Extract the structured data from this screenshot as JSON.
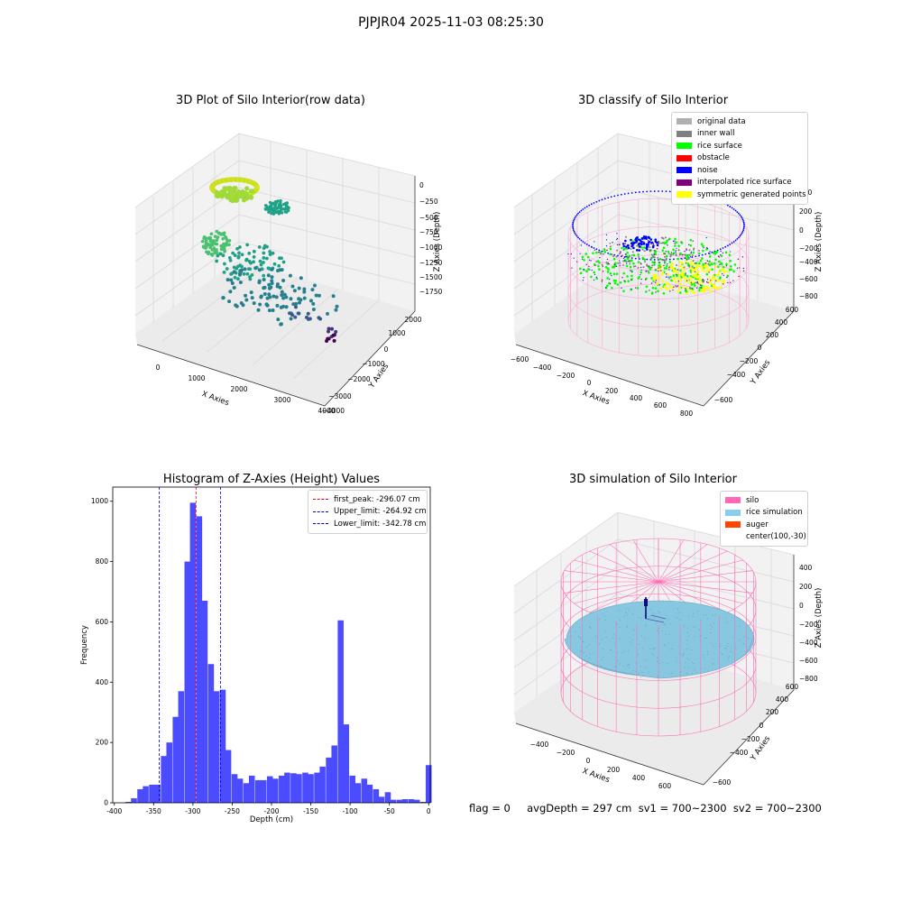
{
  "suptitle": "PJPJR04 2025-11-03 08:25:30",
  "footer": "flag = 0     avgDepth = 297 cm  sv1 = 700~2300  sv2 = 700~2300",
  "chart_data": [
    {
      "type": "scatter",
      "title": "3D Plot of Silo Interior(row data)",
      "xlabel": "X Axies",
      "ylabel": "Y Axies",
      "zlabel": "Z Axies (Depth)",
      "x_ticks": [
        "0",
        "1000",
        "2000",
        "3000",
        "4000"
      ],
      "y_ticks": [
        "−4000",
        "−3000",
        "−2000",
        "−1000",
        "0",
        "1000",
        "2000"
      ],
      "z_ticks": [
        "0",
        "−250",
        "−500",
        "−750",
        "−1000",
        "−1250",
        "−1500",
        "−1750"
      ]
    },
    {
      "type": "scatter",
      "title": "3D classify of Silo Interior",
      "xlabel": "X Axies",
      "ylabel": "Y Axies",
      "zlabel": "Z Axies (Depth)",
      "x_ticks": [
        "−600",
        "−400",
        "−200",
        "0",
        "200",
        "400",
        "600",
        "800"
      ],
      "y_ticks": [
        "−600",
        "−400",
        "−200",
        "0",
        "200",
        "400",
        "600"
      ],
      "z_ticks": [
        "400",
        "200",
        "0",
        "−200",
        "−400",
        "−600",
        "−800"
      ],
      "legend": [
        {
          "label": "original data",
          "color": "#b0b0b0"
        },
        {
          "label": "inner wall",
          "color": "#808080"
        },
        {
          "label": "rice surface",
          "color": "#00ff00"
        },
        {
          "label": "obstacle",
          "color": "#ff0000"
        },
        {
          "label": "noise",
          "color": "#0000ff"
        },
        {
          "label": "interpolated rice surface",
          "color": "#800080"
        },
        {
          "label": "symmetric generated points",
          "color": "#ffff00"
        }
      ]
    },
    {
      "type": "bar",
      "title": "Histogram of Z-Axies (Height) Values",
      "xlabel": "Depth (cm)",
      "ylabel": "Frequency",
      "xlim": [
        -402,
        2
      ],
      "ylim": [
        0,
        1047
      ],
      "x_ticks": [
        -400,
        -350,
        -300,
        -250,
        -200,
        -150,
        -100,
        -50,
        0
      ],
      "y_ticks": [
        0,
        200,
        400,
        600,
        800,
        1000
      ],
      "bin_width": 7.5,
      "bins": [
        [
          -382,
          3
        ],
        [
          -375,
          15
        ],
        [
          -367,
          45
        ],
        [
          -360,
          55
        ],
        [
          -352,
          60
        ],
        [
          -345,
          60
        ],
        [
          -337,
          155
        ],
        [
          -330,
          200
        ],
        [
          -322,
          285
        ],
        [
          -315,
          370
        ],
        [
          -307,
          800
        ],
        [
          -300,
          995
        ],
        [
          -292,
          950
        ],
        [
          -285,
          670
        ],
        [
          -277,
          460
        ],
        [
          -270,
          370
        ],
        [
          -262,
          375
        ],
        [
          -255,
          175
        ],
        [
          -247,
          95
        ],
        [
          -240,
          80
        ],
        [
          -232,
          65
        ],
        [
          -225,
          90
        ],
        [
          -217,
          75
        ],
        [
          -210,
          75
        ],
        [
          -202,
          88
        ],
        [
          -195,
          80
        ],
        [
          -187,
          90
        ],
        [
          -180,
          100
        ],
        [
          -172,
          98
        ],
        [
          -165,
          95
        ],
        [
          -157,
          100
        ],
        [
          -150,
          95
        ],
        [
          -142,
          100
        ],
        [
          -135,
          120
        ],
        [
          -127,
          150
        ],
        [
          -120,
          190
        ],
        [
          -112,
          605
        ],
        [
          -105,
          260
        ],
        [
          -97,
          90
        ],
        [
          -90,
          65
        ],
        [
          -82,
          80
        ],
        [
          -75,
          60
        ],
        [
          -67,
          45
        ],
        [
          -60,
          20
        ],
        [
          -52,
          35
        ],
        [
          -45,
          10
        ],
        [
          -37,
          10
        ],
        [
          -30,
          12
        ],
        [
          -22,
          12
        ],
        [
          -15,
          10
        ],
        [
          -7,
          3
        ],
        [
          0,
          125
        ]
      ],
      "bar_color": "#4b4bff",
      "lines": [
        {
          "label": "first_peak: -296.07 cm",
          "value": -296.07,
          "color": "#ff0000"
        },
        {
          "label": "Upper_limit: -264.92 cm",
          "value": -264.92,
          "color": "#0000cc"
        },
        {
          "label": "Lower_limit: -342.78 cm",
          "value": -342.78,
          "color": "#0000cc"
        }
      ]
    },
    {
      "type": "scatter",
      "title": "3D simulation of Silo Interior",
      "xlabel": "X Axies",
      "ylabel": "Y Axies",
      "zlabel": "Z Axies (Depth)",
      "x_ticks": [
        "−400",
        "−200",
        "0",
        "200",
        "400",
        "600"
      ],
      "y_ticks": [
        "−600",
        "−400",
        "−200",
        "0",
        "200",
        "400",
        "600"
      ],
      "z_ticks": [
        "400",
        "200",
        "0",
        "−200",
        "−400",
        "−600",
        "−800"
      ],
      "legend": [
        {
          "label": "silo",
          "color": "#ff69b4"
        },
        {
          "label": "rice simulation",
          "color": "#87ceeb"
        },
        {
          "label": "auger",
          "color": "#ff4500"
        },
        {
          "label": "center(100,-30)",
          "color": ""
        }
      ]
    }
  ]
}
